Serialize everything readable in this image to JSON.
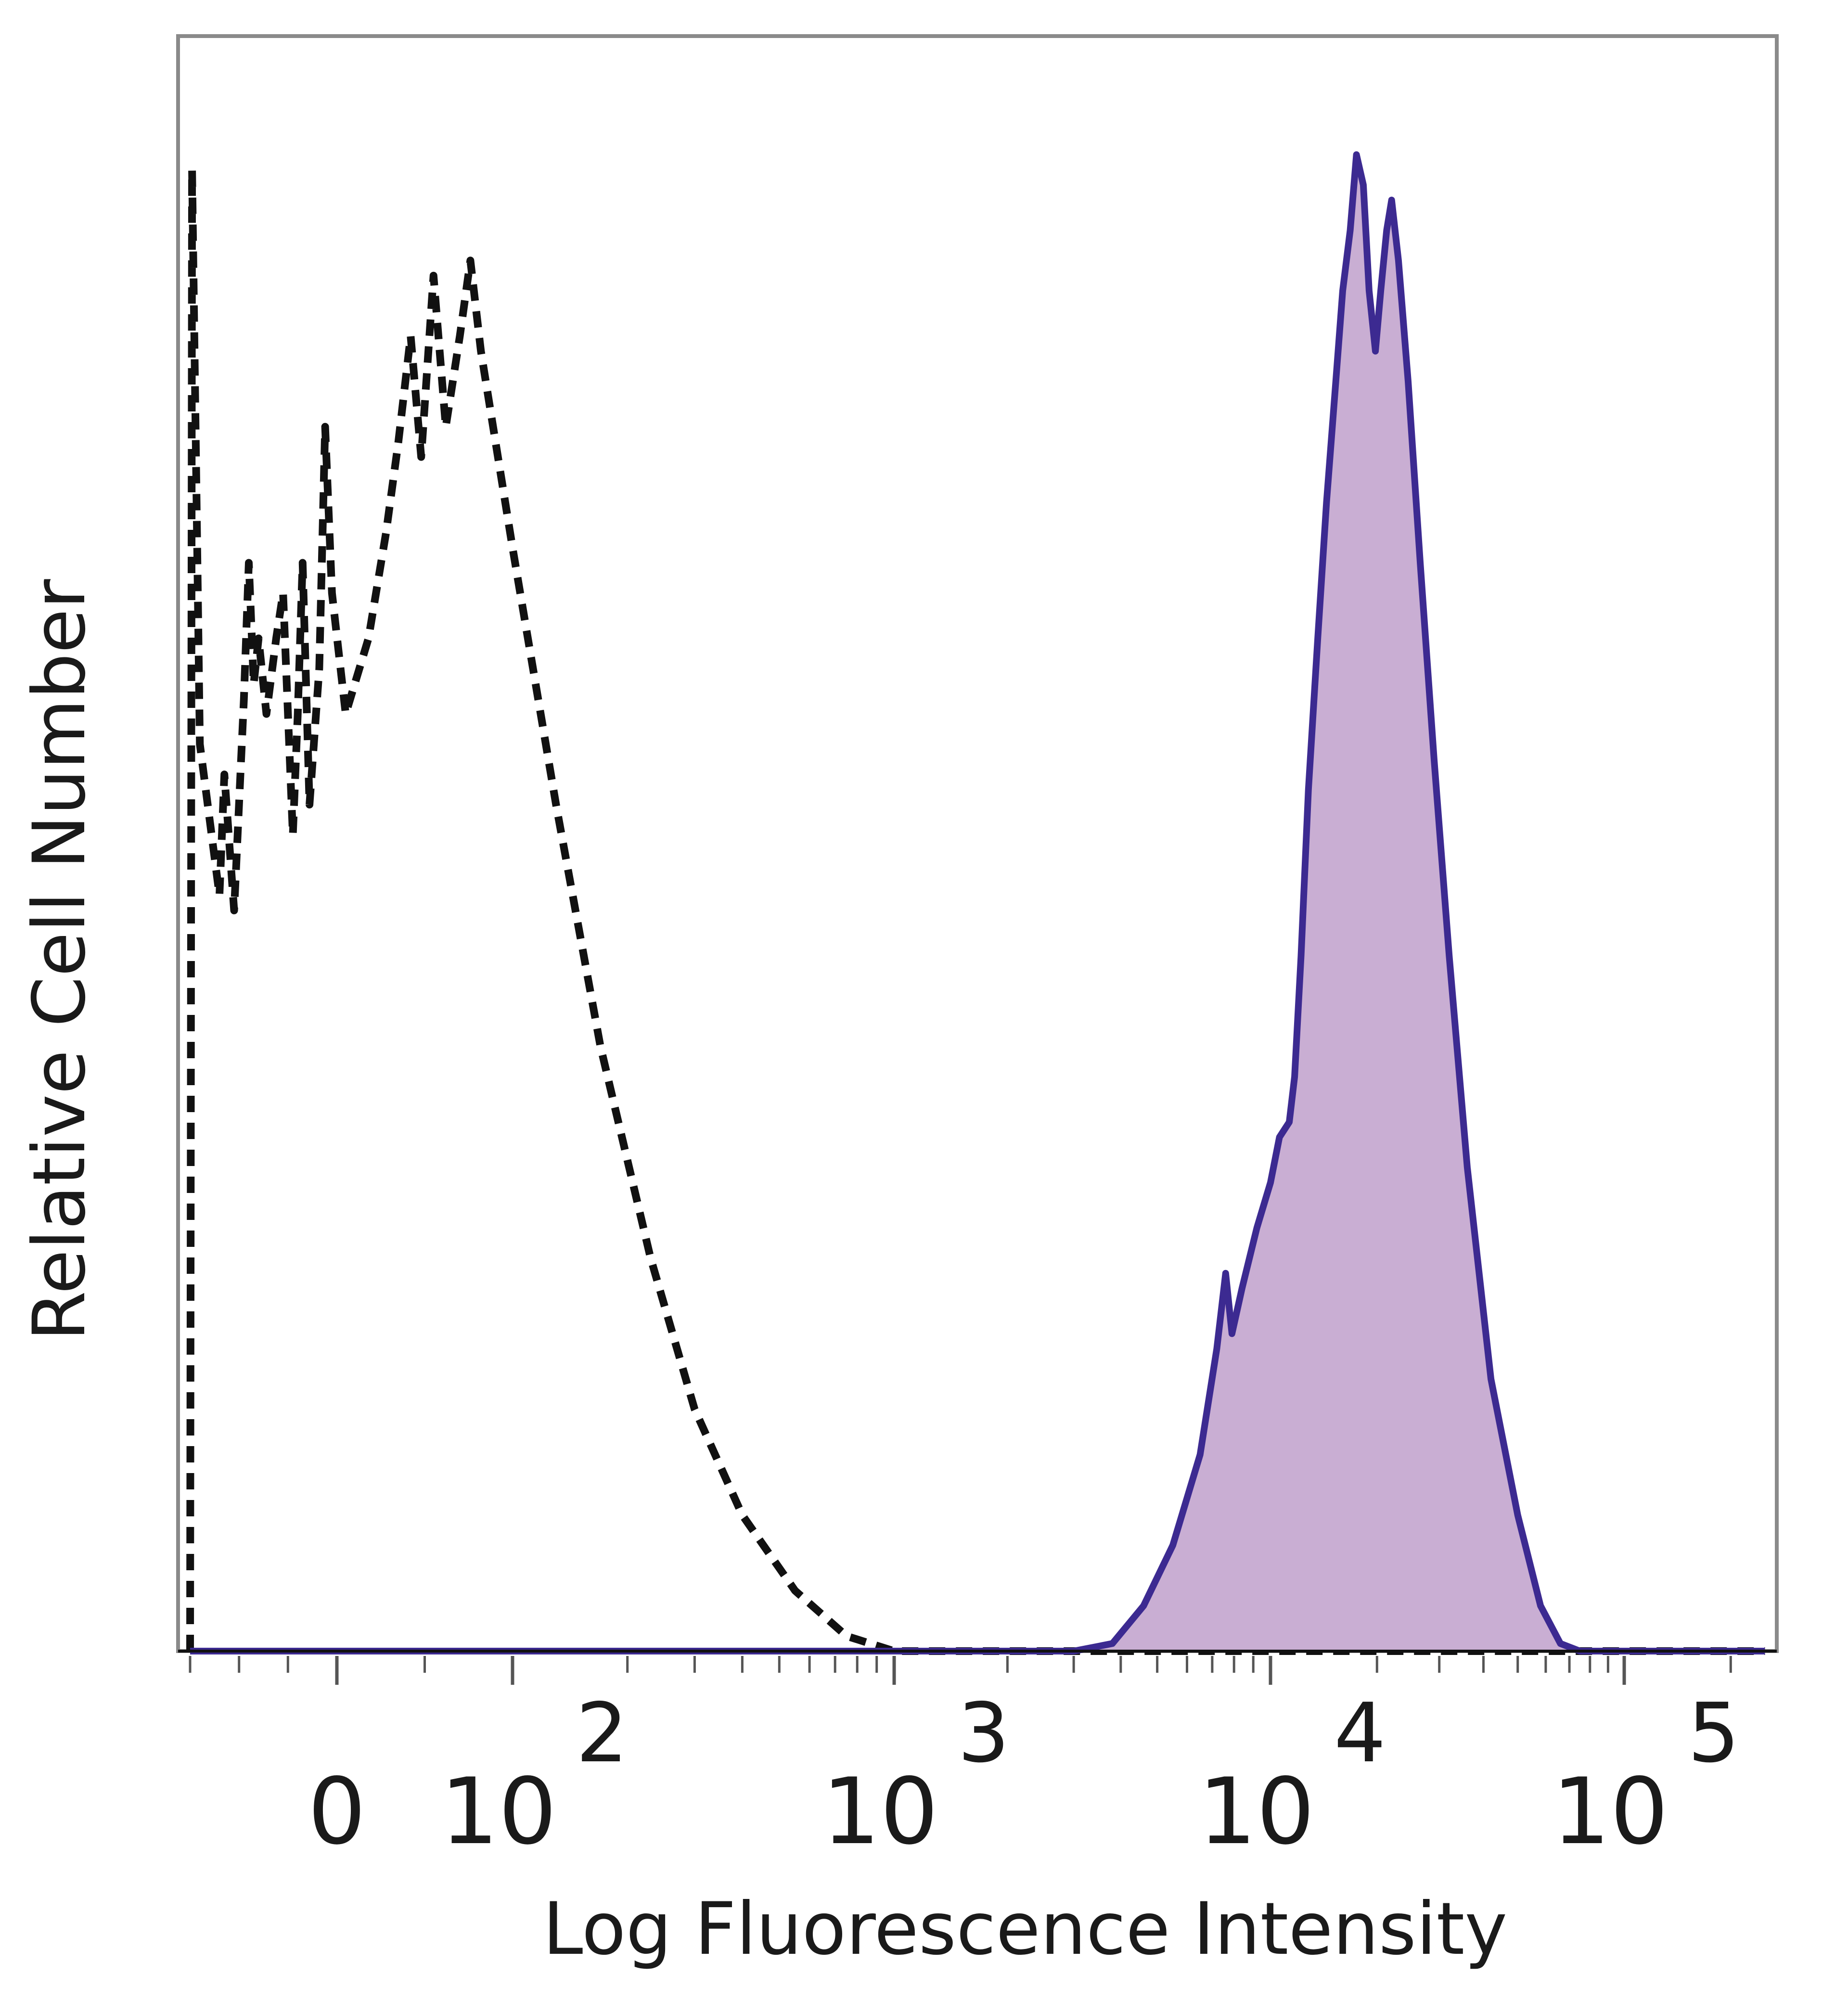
{
  "chart_data": {
    "type": "area",
    "title": "",
    "xlabel": "Log Fluorescence Intensity",
    "ylabel": "Relative Cell Number",
    "x_scale": "biexponential",
    "xlim": [
      -150,
      250000
    ],
    "ylim": [
      0,
      100
    ],
    "y_ticks_labeled": false,
    "grid": false,
    "legend": "none",
    "x_tick_labels": [
      {
        "value": 0,
        "label": "0"
      },
      {
        "value": 100,
        "base": "10",
        "exp": "2"
      },
      {
        "value": 1000,
        "base": "10",
        "exp": "3"
      },
      {
        "value": 10000,
        "base": "10",
        "exp": "4"
      },
      {
        "value": 100000,
        "base": "10",
        "exp": "5"
      }
    ],
    "x_minor_ticks": [
      -150,
      -100,
      -50,
      0,
      50,
      100,
      200,
      300,
      400,
      500,
      600,
      700,
      800,
      900,
      1000,
      2000,
      3000,
      4000,
      5000,
      6000,
      7000,
      8000,
      9000,
      10000,
      20000,
      30000,
      40000,
      50000,
      60000,
      70000,
      80000,
      90000,
      100000,
      200000
    ],
    "series": [
      {
        "style": "dashed",
        "color": "#111111",
        "fill": "none",
        "points": [
          [
            -150,
            0
          ],
          [
            -148,
            98
          ],
          [
            -140,
            60
          ],
          [
            -120,
            50
          ],
          [
            -115,
            58
          ],
          [
            -105,
            49
          ],
          [
            -95,
            63
          ],
          [
            -90,
            72
          ],
          [
            -85,
            64
          ],
          [
            -80,
            67
          ],
          [
            -72,
            62
          ],
          [
            -62,
            67
          ],
          [
            -55,
            70
          ],
          [
            -45,
            54
          ],
          [
            -40,
            62
          ],
          [
            -35,
            72
          ],
          [
            -28,
            56
          ],
          [
            -18,
            65
          ],
          [
            -12,
            81
          ],
          [
            -5,
            70
          ],
          [
            5,
            62
          ],
          [
            18,
            67
          ],
          [
            28,
            74
          ],
          [
            35,
            80
          ],
          [
            42,
            87
          ],
          [
            48,
            79
          ],
          [
            55,
            91
          ],
          [
            62,
            81
          ],
          [
            70,
            87
          ],
          [
            76,
            92
          ],
          [
            82,
            86
          ],
          [
            100,
            73
          ],
          [
            130,
            56
          ],
          [
            170,
            40
          ],
          [
            230,
            26
          ],
          [
            300,
            16
          ],
          [
            400,
            9
          ],
          [
            550,
            4
          ],
          [
            750,
            1
          ],
          [
            1000,
            0
          ],
          [
            5000,
            0
          ],
          [
            250000,
            0
          ]
        ]
      },
      {
        "style": "solid",
        "color": "#3c2a91",
        "fill": "#c9aed3",
        "points": [
          [
            -150,
            0
          ],
          [
            3000,
            0
          ],
          [
            3800,
            0.5
          ],
          [
            4600,
            3
          ],
          [
            5500,
            7
          ],
          [
            6500,
            13
          ],
          [
            7200,
            20
          ],
          [
            7600,
            25
          ],
          [
            7900,
            21
          ],
          [
            8400,
            24
          ],
          [
            9200,
            28
          ],
          [
            10000,
            31
          ],
          [
            10600,
            34
          ],
          [
            11300,
            35
          ],
          [
            11700,
            38
          ],
          [
            12200,
            46
          ],
          [
            12800,
            57
          ],
          [
            13600,
            67
          ],
          [
            14400,
            76
          ],
          [
            15300,
            84
          ],
          [
            16000,
            90
          ],
          [
            16800,
            94
          ],
          [
            17500,
            99
          ],
          [
            18300,
            97
          ],
          [
            19000,
            90
          ],
          [
            19800,
            86
          ],
          [
            20500,
            90
          ],
          [
            21300,
            94
          ],
          [
            22000,
            96
          ],
          [
            23000,
            92
          ],
          [
            24500,
            84
          ],
          [
            26500,
            72
          ],
          [
            29000,
            59
          ],
          [
            32000,
            46
          ],
          [
            36000,
            32
          ],
          [
            42000,
            18
          ],
          [
            50000,
            9
          ],
          [
            58000,
            3
          ],
          [
            66000,
            0.5
          ],
          [
            75000,
            0
          ],
          [
            250000,
            0
          ]
        ]
      }
    ]
  }
}
